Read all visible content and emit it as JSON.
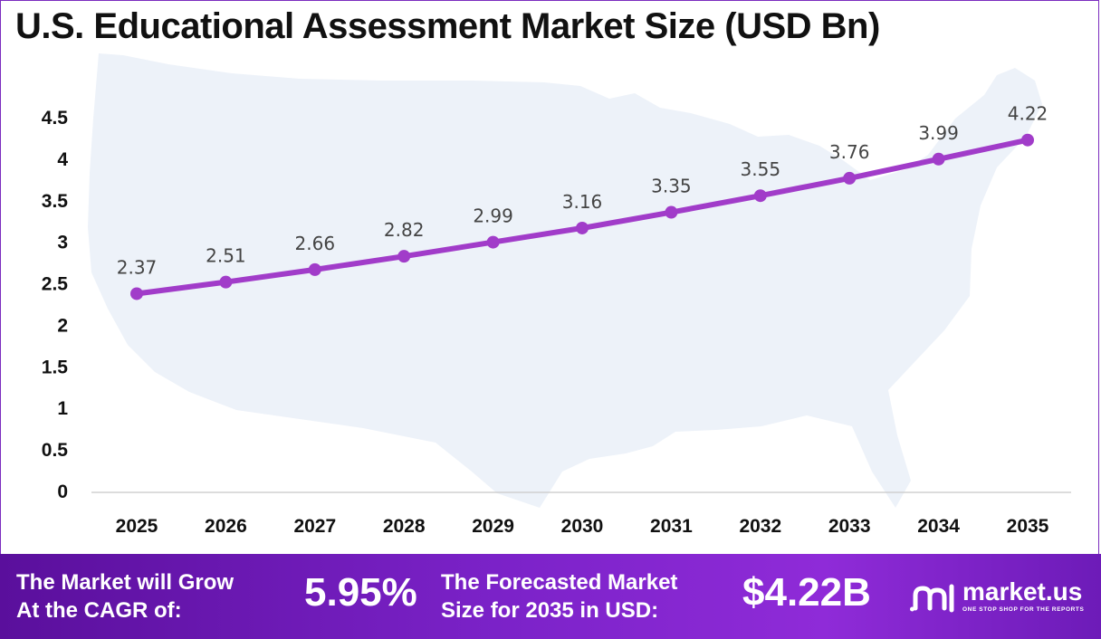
{
  "chart_data": {
    "type": "line",
    "title": "U.S. Educational Assessment Market Size (USD Bn)",
    "categories": [
      "2025",
      "2026",
      "2027",
      "2028",
      "2029",
      "2030",
      "2031",
      "2032",
      "2033",
      "2034",
      "2035"
    ],
    "series": [
      {
        "values": [
          2.37,
          2.51,
          2.66,
          2.82,
          2.99,
          3.16,
          3.35,
          3.55,
          3.76,
          3.99,
          4.22
        ]
      }
    ],
    "yticks": [
      "0",
      "0.5",
      "1",
      "1.5",
      "2",
      "2.5",
      "3",
      "3.5",
      "4",
      "4.5"
    ],
    "ylim": [
      0,
      4.5
    ],
    "grid": false,
    "data_labels": true,
    "line_color": "#a13cc9",
    "background_image": "US map silhouette"
  },
  "footer": {
    "cagr_label": "The Market will Grow\nAt the CAGR of:",
    "cagr_value": "5.95%",
    "forecast_label": "The Forecasted Market\nSize for 2035 in USD:",
    "forecast_value": "$4.22B",
    "logo_name": "market.us",
    "logo_tagline": "ONE STOP SHOP FOR THE REPORTS",
    "logo_icon": "market-us-logo-icon"
  }
}
